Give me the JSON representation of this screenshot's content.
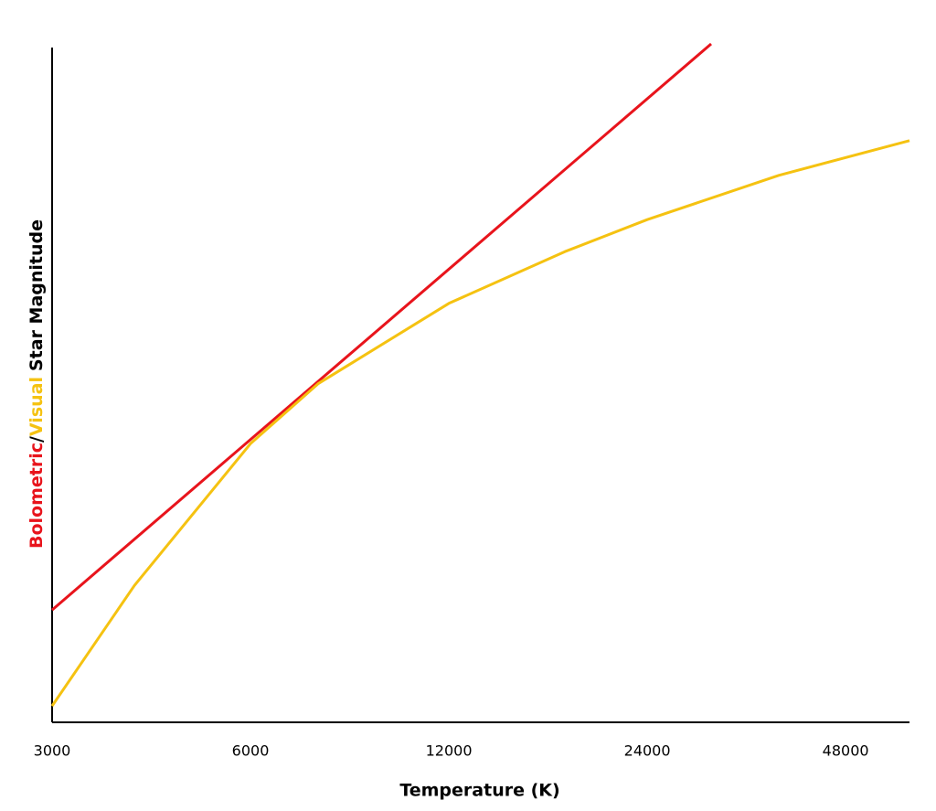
{
  "chart_data": {
    "type": "line",
    "x_label": "Temperature (K)",
    "y_label": "Star Magnitude",
    "y_label_separator": "/",
    "log_x": true,
    "xlim": [
      3000,
      60000
    ],
    "xticks": [
      3000,
      6000,
      12000,
      24000,
      48000
    ],
    "ylim": [
      0,
      100
    ],
    "series": [
      {
        "name": "Bolometric",
        "color": "#e8141c",
        "x": [
          3000,
          30000
        ],
        "values": [
          16.5,
          99.6
        ]
      },
      {
        "name": "Visual",
        "color": "#f5c211",
        "x": [
          3000,
          4000,
          6000,
          7600,
          12000,
          18000,
          24000,
          38000,
          60000
        ],
        "values": [
          2.4,
          20.1,
          40.9,
          49.7,
          61.5,
          69.1,
          73.8,
          80.3,
          85.4
        ]
      }
    ]
  }
}
